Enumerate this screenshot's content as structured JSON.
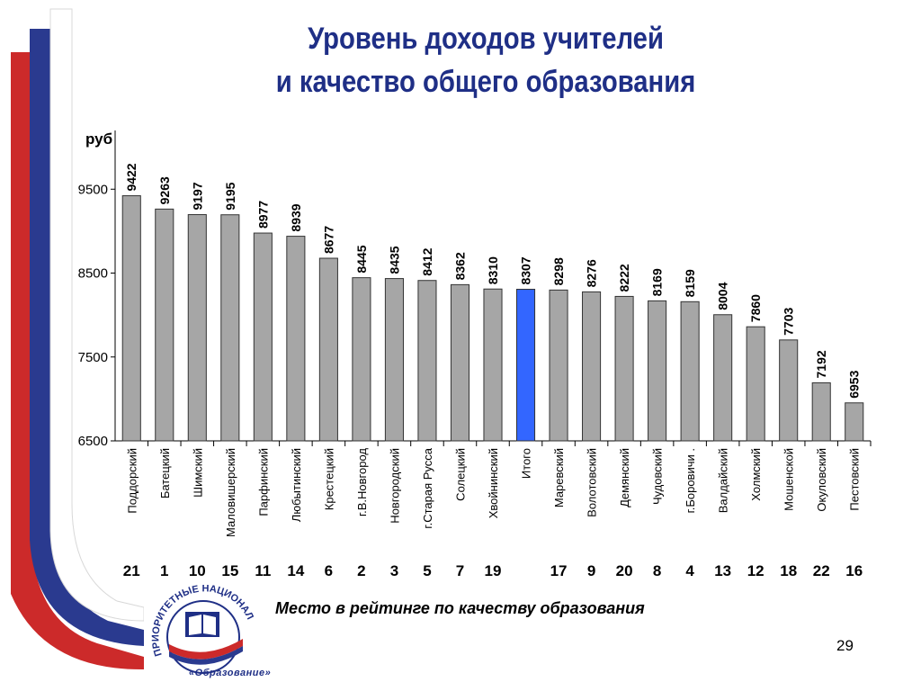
{
  "slide": {
    "title_line1": "Уровень доходов учителей",
    "title_line2": "и качество общего образования",
    "caption": "Место в рейтинге по качеству образования",
    "page_number": "29",
    "logo_arc_text": "ПРИОРИТЕТНЫЕ НАЦИОНАЛЬНЫЕ ПРОЕКТЫ",
    "logo_label": "«Образование»",
    "colors": {
      "title": "#1f2f86",
      "bar": "#a6a6a6",
      "highlight_bar": "#3366ff",
      "stripe_red": "#cc2a2a",
      "stripe_blue": "#2a3a8f"
    }
  },
  "chart_data": {
    "type": "bar",
    "ylabel": "руб",
    "ylim": [
      6500,
      10200
    ],
    "yticks": [
      6500,
      7500,
      8500,
      9500
    ],
    "grid": false,
    "categories": [
      "Поддорский",
      "Батецкий",
      "Шимский",
      "Маловишерский",
      "Парфинский",
      "Любытинский",
      "Крестецкий",
      "г.В.Новгород",
      "Новгородский",
      "г.Старая Русса",
      "Солецкий",
      "Хвойнинский",
      "Итого",
      "Маревский",
      "Волотовский",
      "Демянский",
      "Чудовский",
      "г.Боровичи .",
      "Валдайский",
      "Холмский",
      "Мошенской",
      "Окуловский",
      "Пестовский"
    ],
    "values": [
      9422,
      9263,
      9197,
      9195,
      8977,
      8939,
      8677,
      8445,
      8435,
      8412,
      8362,
      8310,
      8307,
      8298,
      8276,
      8222,
      8169,
      8159,
      8004,
      7860,
      7703,
      7192,
      6953
    ],
    "ranks": [
      "21",
      "1",
      "10",
      "15",
      "11",
      "14",
      "6",
      "2",
      "3",
      "5",
      "7",
      "19",
      "",
      "17",
      "9",
      "20",
      "8",
      "4",
      "13",
      "12",
      "18",
      "22",
      "16"
    ],
    "highlight_index": 12
  }
}
